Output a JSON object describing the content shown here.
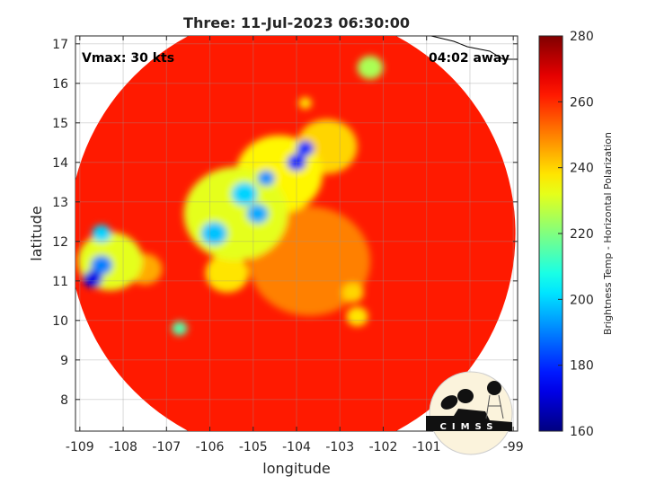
{
  "chart_data": {
    "type": "heatmap",
    "title": "Three: 11-Jul-2023 06:30:00",
    "xlabel": "longitude",
    "ylabel": "latitude",
    "xlim": [
      -109.1,
      -98.9
    ],
    "ylim": [
      7.2,
      17.2
    ],
    "xticks": [
      "-109",
      "-108",
      "-107",
      "-106",
      "-105",
      "-104",
      "-103",
      "-102",
      "-101",
      "-100",
      "-99"
    ],
    "yticks": [
      "8",
      "9",
      "10",
      "11",
      "12",
      "13",
      "14",
      "15",
      "16",
      "17"
    ],
    "grid": true,
    "annotations": {
      "vmax": "Vmax: 30 kts",
      "time_away": "04:02 away"
    },
    "colorbar": {
      "label": "Brightness Temp - Horizontal Polarization",
      "range": [
        160,
        280
      ],
      "ticks": [
        "160",
        "180",
        "200",
        "220",
        "240",
        "260",
        "280"
      ],
      "colormap": "jet"
    },
    "swath": {
      "center_lon": -104.1,
      "center_lat": 12.2,
      "radius_deg": 5.15,
      "background_value": 262
    },
    "features": [
      {
        "lon": -108.3,
        "lat": 11.5,
        "value": 232,
        "size": 0.75
      },
      {
        "lon": -108.5,
        "lat": 12.2,
        "value": 200,
        "size": 0.22
      },
      {
        "lon": -108.5,
        "lat": 11.4,
        "value": 190,
        "size": 0.25
      },
      {
        "lon": -108.7,
        "lat": 11.05,
        "value": 172,
        "size": 0.22
      },
      {
        "lon": -105.4,
        "lat": 12.7,
        "value": 232,
        "size": 1.2
      },
      {
        "lon": -104.4,
        "lat": 13.7,
        "value": 236,
        "size": 1.0
      },
      {
        "lon": -103.3,
        "lat": 14.4,
        "value": 240,
        "size": 0.7
      },
      {
        "lon": -105.9,
        "lat": 12.2,
        "value": 198,
        "size": 0.3
      },
      {
        "lon": -105.2,
        "lat": 13.2,
        "value": 200,
        "size": 0.3
      },
      {
        "lon": -104.9,
        "lat": 12.7,
        "value": 195,
        "size": 0.25
      },
      {
        "lon": -104.7,
        "lat": 13.6,
        "value": 192,
        "size": 0.2
      },
      {
        "lon": -104.0,
        "lat": 14.0,
        "value": 178,
        "size": 0.22
      },
      {
        "lon": -103.8,
        "lat": 14.35,
        "value": 180,
        "size": 0.2
      },
      {
        "lon": -105.6,
        "lat": 11.2,
        "value": 238,
        "size": 0.5
      },
      {
        "lon": -106.7,
        "lat": 9.8,
        "value": 215,
        "size": 0.18
      },
      {
        "lon": -102.6,
        "lat": 10.1,
        "value": 238,
        "size": 0.25
      },
      {
        "lon": -102.7,
        "lat": 10.7,
        "value": 240,
        "size": 0.25
      },
      {
        "lon": -102.3,
        "lat": 16.4,
        "value": 225,
        "size": 0.3
      },
      {
        "lon": -103.8,
        "lat": 15.5,
        "value": 238,
        "size": 0.15
      },
      {
        "lon": -107.5,
        "lat": 11.3,
        "value": 245,
        "size": 0.4
      },
      {
        "lon": -103.7,
        "lat": 11.5,
        "value": 250,
        "size": 1.4
      }
    ]
  },
  "logo": {
    "text": "CIMSS"
  }
}
